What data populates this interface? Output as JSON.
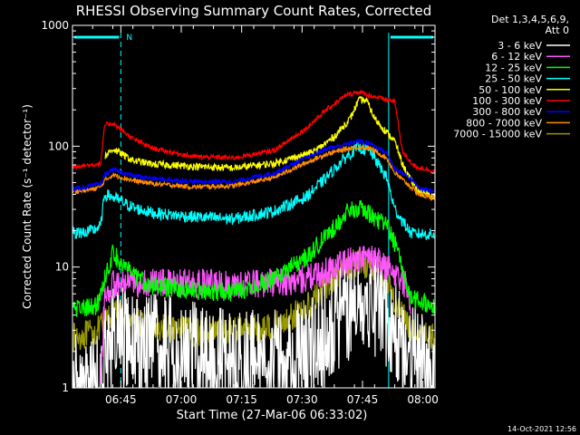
{
  "title": "RHESSI Observing Summary Count Rates, Corrected",
  "timestamp": "14-Oct-2021 12:56",
  "legend_header": "Det 1,3,4,5,6,9, Att 0",
  "chart_data": {
    "type": "line",
    "title": "RHESSI Observing Summary Count Rates, Corrected",
    "xlabel": "Start Time (27-Mar-06 06:33:02)",
    "ylabel": "Corrected Count Rate (s⁻¹ detector⁻¹)",
    "y_scale": "log",
    "ylim": [
      1,
      1000
    ],
    "y_ticks": [
      1,
      10,
      100,
      1000
    ],
    "y_tick_labels": [
      "1",
      "10",
      "100",
      "1000"
    ],
    "xlim_minutes_after_0633": [
      0,
      90
    ],
    "x_ticks": [
      "06:45",
      "07:00",
      "07:15",
      "07:30",
      "07:45",
      "08:00"
    ],
    "x_tick_minutes": [
      12,
      27,
      42,
      57,
      72,
      87
    ],
    "legend_placement": "right",
    "series": [
      {
        "name": "3 - 6 keV",
        "color": "#ffffff",
        "knots": [
          [
            0,
            1
          ],
          [
            7,
            1
          ],
          [
            8,
            1.8
          ],
          [
            10,
            2.6
          ],
          [
            20,
            2.2
          ],
          [
            30,
            1.9
          ],
          [
            40,
            1.6
          ],
          [
            55,
            1.7
          ],
          [
            62,
            2.5
          ],
          [
            66,
            3.8
          ],
          [
            70,
            5.2
          ],
          [
            73,
            5.6
          ],
          [
            76,
            4.9
          ],
          [
            80,
            3.0
          ],
          [
            84,
            2
          ],
          [
            90,
            1
          ]
        ]
      },
      {
        "name": "6 - 12 keV",
        "color": "#ff55ff",
        "knots": [
          [
            7,
            1
          ],
          [
            8,
            6
          ],
          [
            10,
            7.2
          ],
          [
            20,
            7.4
          ],
          [
            30,
            7.3
          ],
          [
            40,
            7.2
          ],
          [
            55,
            7.6
          ],
          [
            62,
            8.8
          ],
          [
            66,
            10.5
          ],
          [
            70,
            11.6
          ],
          [
            73,
            11.9
          ],
          [
            76,
            11.0
          ],
          [
            80,
            9.0
          ],
          [
            83,
            7.0
          ],
          [
            84,
            5
          ]
        ]
      },
      {
        "name": "12 - 25 keV",
        "color": "#00ff00",
        "knots": [
          [
            0,
            4.6
          ],
          [
            6,
            4.7
          ],
          [
            8,
            8
          ],
          [
            10,
            13
          ],
          [
            15,
            8.5
          ],
          [
            20,
            7.0
          ],
          [
            30,
            6.4
          ],
          [
            40,
            6.2
          ],
          [
            50,
            8.0
          ],
          [
            58,
            12
          ],
          [
            63,
            18
          ],
          [
            68,
            28
          ],
          [
            71,
            31
          ],
          [
            74,
            27
          ],
          [
            78,
            22
          ],
          [
            80,
            16
          ],
          [
            84,
            5.5
          ],
          [
            90,
            4.8
          ]
        ]
      },
      {
        "name": "25 - 50 keV",
        "color": "#00ffff",
        "knots": [
          [
            0,
            19
          ],
          [
            5,
            20
          ],
          [
            7,
            22
          ],
          [
            8,
            40
          ],
          [
            10,
            38
          ],
          [
            15,
            31
          ],
          [
            20,
            28
          ],
          [
            30,
            26
          ],
          [
            40,
            25
          ],
          [
            50,
            29
          ],
          [
            58,
            38
          ],
          [
            63,
            55
          ],
          [
            68,
            82
          ],
          [
            71,
            98
          ],
          [
            74,
            90
          ],
          [
            78,
            55
          ],
          [
            80,
            30
          ],
          [
            84,
            19
          ],
          [
            90,
            18.5
          ]
        ]
      },
      {
        "name": "50 - 100 keV",
        "color": "#ffff00",
        "knots": [
          [
            8,
            82
          ],
          [
            10,
            95
          ],
          [
            15,
            76
          ],
          [
            20,
            71
          ],
          [
            30,
            68
          ],
          [
            40,
            66
          ],
          [
            50,
            72
          ],
          [
            60,
            90
          ],
          [
            65,
            120
          ],
          [
            69,
            170
          ],
          [
            71,
            240
          ],
          [
            73,
            240
          ],
          [
            75,
            170
          ],
          [
            78,
            130
          ],
          [
            80,
            110
          ],
          [
            82,
            70
          ],
          [
            84,
            52
          ],
          [
            86,
            42
          ],
          [
            90,
            38
          ]
        ]
      },
      {
        "name": "100 - 300 keV",
        "color": "#ff0000",
        "knots": [
          [
            0,
            68
          ],
          [
            5,
            70
          ],
          [
            7,
            72
          ],
          [
            8,
            150
          ],
          [
            10,
            155
          ],
          [
            15,
            115
          ],
          [
            20,
            96
          ],
          [
            30,
            82
          ],
          [
            40,
            80
          ],
          [
            50,
            92
          ],
          [
            58,
            140
          ],
          [
            63,
            200
          ],
          [
            68,
            265
          ],
          [
            71,
            282
          ],
          [
            74,
            262
          ],
          [
            78,
            242
          ],
          [
            80,
            235
          ],
          [
            82,
            88
          ],
          [
            85,
            68
          ],
          [
            90,
            62
          ]
        ]
      },
      {
        "name": "300 - 800 keV",
        "color": "#0000ff",
        "knots": [
          [
            0,
            44
          ],
          [
            5,
            47
          ],
          [
            7,
            49
          ],
          [
            8,
            58
          ],
          [
            10,
            64
          ],
          [
            15,
            57
          ],
          [
            20,
            54
          ],
          [
            30,
            51
          ],
          [
            40,
            51
          ],
          [
            50,
            60
          ],
          [
            58,
            80
          ],
          [
            63,
            95
          ],
          [
            68,
            104
          ],
          [
            71,
            110
          ],
          [
            74,
            105
          ],
          [
            78,
            88
          ],
          [
            80,
            66
          ],
          [
            84,
            54
          ],
          [
            86,
            45
          ],
          [
            90,
            42
          ]
        ]
      },
      {
        "name": "800 - 7000 keV",
        "color": "#ff8c00",
        "knots": [
          [
            0,
            42
          ],
          [
            5,
            44
          ],
          [
            7,
            46
          ],
          [
            8,
            52
          ],
          [
            10,
            58
          ],
          [
            15,
            52
          ],
          [
            20,
            49
          ],
          [
            30,
            46
          ],
          [
            40,
            47
          ],
          [
            50,
            55
          ],
          [
            58,
            73
          ],
          [
            63,
            86
          ],
          [
            68,
            95
          ],
          [
            71,
            99
          ],
          [
            74,
            96
          ],
          [
            78,
            80
          ],
          [
            80,
            60
          ],
          [
            84,
            46
          ],
          [
            86,
            40
          ],
          [
            90,
            37
          ]
        ]
      },
      {
        "name": "7000 - 15000 keV",
        "color": "#999900",
        "knots": [
          [
            0,
            2.6
          ],
          [
            6,
            2.9
          ],
          [
            8,
            3.5
          ],
          [
            10,
            4.2
          ],
          [
            20,
            3.2
          ],
          [
            30,
            2.9
          ],
          [
            40,
            3.0
          ],
          [
            50,
            3.2
          ],
          [
            58,
            4.5
          ],
          [
            63,
            7
          ],
          [
            68,
            10
          ],
          [
            71,
            11.2
          ],
          [
            74,
            10.5
          ],
          [
            78,
            8.5
          ],
          [
            80,
            5.2
          ],
          [
            84,
            3
          ],
          [
            90,
            2.6
          ]
        ]
      }
    ],
    "markers": [
      {
        "label": "N",
        "color": "#00ffff",
        "line_minutes": 0,
        "bar_from": 0,
        "bar_to": 12
      },
      {
        "label": "",
        "color": "#00ffff",
        "line_minutes": 12,
        "style": "dashed"
      },
      {
        "label": "",
        "color": "#00ffff",
        "line_minutes": 78.5,
        "bar_from": 78.5,
        "bar_to": 90
      },
      {
        "label": "",
        "color": "#00ffff",
        "line_minutes": 90,
        "style": "dashed"
      }
    ]
  }
}
